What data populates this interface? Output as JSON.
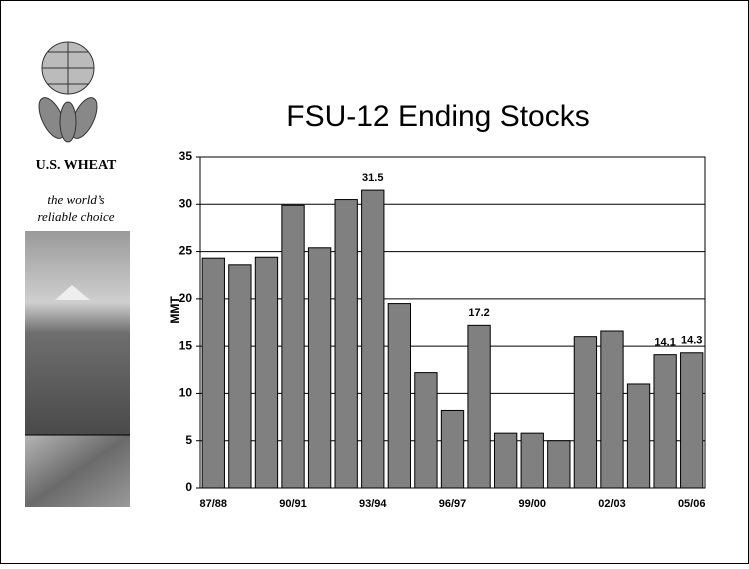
{
  "brand": {
    "name": "U.S. WHEAT",
    "tagline_1": "the world’s",
    "tagline_2": "reliable choice"
  },
  "chart_data": {
    "type": "bar",
    "title": "FSU-12 Ending Stocks",
    "y_label": "MMT",
    "categories": [
      "87/88",
      null,
      null,
      "90/91",
      null,
      null,
      "93/94",
      null,
      null,
      "96/97",
      null,
      null,
      "99/00",
      null,
      null,
      "02/03",
      null,
      null,
      "05/06"
    ],
    "values": [
      24.3,
      23.6,
      24.4,
      29.9,
      25.4,
      30.5,
      31.5,
      19.5,
      12.2,
      8.2,
      17.2,
      5.8,
      5.8,
      5.0,
      16.0,
      16.6,
      11.0,
      14.1,
      14.3
    ],
    "value_labels": [
      null,
      null,
      null,
      null,
      null,
      null,
      "31.5",
      null,
      null,
      null,
      "17.2",
      null,
      null,
      null,
      null,
      null,
      null,
      "14.1",
      "14.3"
    ],
    "color": "#808080",
    "ylim": [
      0,
      35
    ],
    "yticks": [
      0,
      5,
      10,
      15,
      20,
      25,
      30,
      35
    ],
    "grid": true
  }
}
